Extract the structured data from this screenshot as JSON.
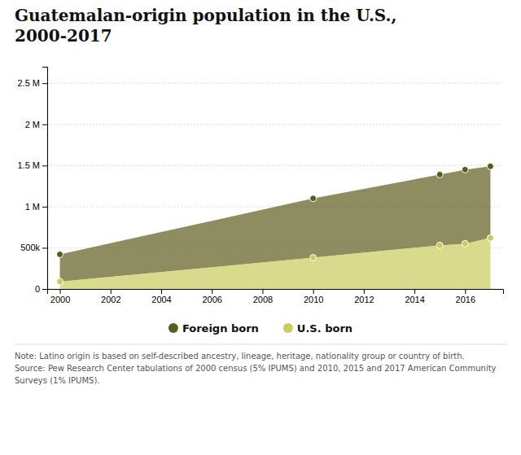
{
  "chart_data": {
    "type": "area",
    "title": "Guatemalan-origin population in the U.S.,\n2000-2017",
    "x": [
      2000,
      2010,
      2015,
      2016,
      2017
    ],
    "series": [
      {
        "name": "Foreign born",
        "color": "#5c5c1e",
        "marker": "circle",
        "values": [
          420000,
          1100000,
          1390000,
          1450000,
          1490000
        ]
      },
      {
        "name": "U.S. born",
        "color": "#c8cc5a",
        "marker": "circle",
        "values": [
          90000,
          380000,
          530000,
          550000,
          620000
        ]
      }
    ],
    "xlim": [
      1999.5,
      2017.5
    ],
    "xticks": [
      2000,
      2002,
      2004,
      2006,
      2008,
      2010,
      2012,
      2014,
      2016
    ],
    "ylim": [
      0,
      2700000
    ],
    "yticks": [
      0,
      {
        "value": 500000,
        "label": "500k"
      },
      {
        "value": 1000000,
        "label": "1 M"
      },
      {
        "value": 1500000,
        "label": "1.5 M"
      },
      {
        "value": 2000000,
        "label": "2 M"
      },
      {
        "value": 2500000,
        "label": "2.5 M"
      }
    ],
    "grid": true,
    "legend": "bottom",
    "annotations": [
      "Note: Latino origin is based on self-described ancestry, lineage, heritage, nationality group or country of birth.\nSource: Pew Research Center tabulations of 2000 census (5% IPUMS) and 2010, 2015 and 2017 American Community\nSurveys (1% IPUMS)."
    ]
  }
}
